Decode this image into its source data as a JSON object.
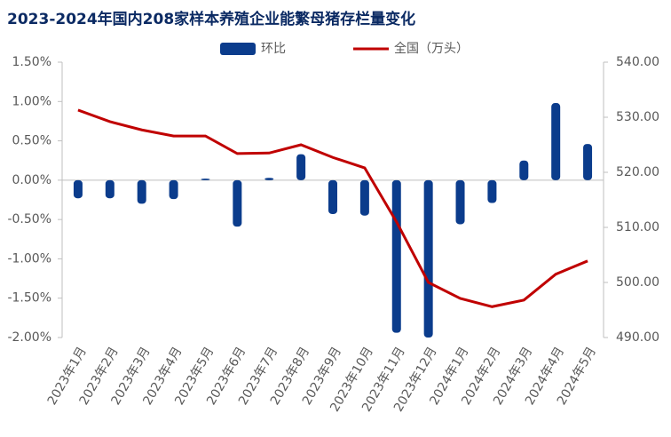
{
  "chart_data": {
    "type": "bar_line",
    "title": "2023-2024年国内208家样本养殖企业能繁母猪存栏量变化",
    "categories": [
      "2023年1月",
      "2023年2月",
      "2023年3月",
      "2023年4月",
      "2023年5月",
      "2023年6月",
      "2023年7月",
      "2023年8月",
      "2023年9月",
      "2023年10月",
      "2023年11月",
      "2023年12月",
      "2024年1月",
      "2024年2月",
      "2024年3月",
      "2024年4月",
      "2024年5月"
    ],
    "series": [
      {
        "name": "环比",
        "color": "#0b3c8c",
        "kind": "bar",
        "axis": "y",
        "values": [
          -0.23,
          -0.23,
          -0.3,
          -0.24,
          0.02,
          -0.59,
          0.03,
          0.33,
          -0.43,
          -0.45,
          -1.94,
          -2.0,
          -0.56,
          -0.29,
          0.25,
          0.98,
          0.46
        ]
      },
      {
        "name": "全国（万头）",
        "color": "#c00000",
        "kind": "line",
        "axis": "y2",
        "values": [
          531.3,
          529.2,
          527.7,
          526.6,
          526.6,
          523.4,
          523.5,
          525.0,
          522.7,
          520.8,
          511.0,
          500.0,
          497.1,
          495.6,
          496.8,
          501.5,
          503.9
        ]
      }
    ],
    "ylim": [
      -2.0,
      1.5
    ],
    "yticks": [
      {
        "value": 1.5,
        "label": "1.50%"
      },
      {
        "value": 1.0,
        "label": "1.00%"
      },
      {
        "value": 0.5,
        "label": "0.50%"
      },
      {
        "value": 0,
        "label": "0.00%"
      },
      {
        "value": -0.5,
        "label": "-0.50%"
      },
      {
        "value": -1.0,
        "label": "-1.00%"
      },
      {
        "value": -1.5,
        "label": "-1.50%"
      },
      {
        "value": -2.0,
        "label": "-2.00%"
      }
    ],
    "y2lim": [
      490,
      540
    ],
    "y2ticks": [
      {
        "value": 540,
        "label": "540.00"
      },
      {
        "value": 530,
        "label": "530.00"
      },
      {
        "value": 520,
        "label": "520.00"
      },
      {
        "value": 510,
        "label": "510.00"
      },
      {
        "value": 500,
        "label": "500.00"
      },
      {
        "value": 490,
        "label": "490.00"
      }
    ]
  }
}
